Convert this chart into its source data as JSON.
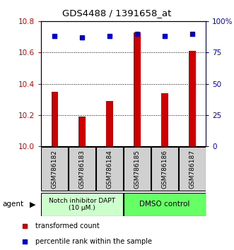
{
  "title": "GDS4488 / 1391658_at",
  "samples": [
    "GSM786182",
    "GSM786183",
    "GSM786184",
    "GSM786185",
    "GSM786186",
    "GSM786187"
  ],
  "bar_values": [
    10.35,
    10.19,
    10.29,
    10.73,
    10.34,
    10.61
  ],
  "percentile_values": [
    88,
    87,
    88,
    90,
    88,
    90
  ],
  "bar_color": "#cc0000",
  "dot_color": "#0000cc",
  "ylim_left": [
    10.0,
    10.8
  ],
  "yticks_left": [
    10.0,
    10.2,
    10.4,
    10.6,
    10.8
  ],
  "yticks_right": [
    0,
    25,
    50,
    75,
    100
  ],
  "ylim_right": [
    0,
    100
  ],
  "group1_label": "Notch inhibitor DAPT\n(10 μM.)",
  "group2_label": "DMSO control",
  "group1_color": "#ccffcc",
  "group2_color": "#66ff66",
  "legend1_label": "transformed count",
  "legend2_label": "percentile rank within the sample",
  "agent_label": "agent"
}
